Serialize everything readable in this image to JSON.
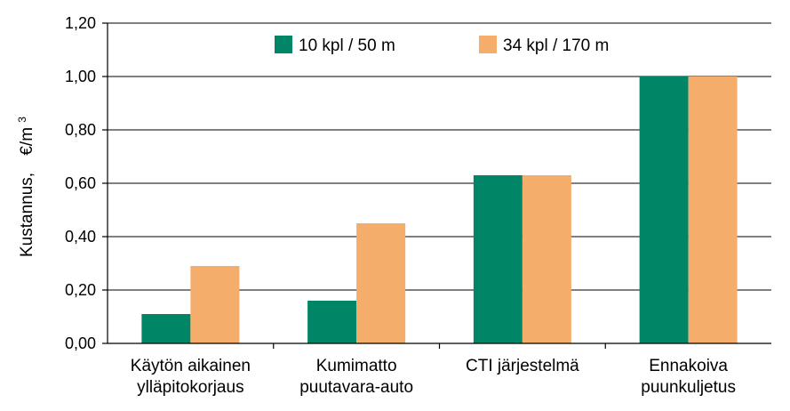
{
  "chart_data": {
    "type": "bar",
    "categories": [
      [
        "Käytön aikainen",
        "ylläpitokorjaus"
      ],
      [
        "Kumimatto",
        "puutavara-auto"
      ],
      [
        "CTI järjestelmä"
      ],
      [
        "Ennakoiva",
        "puunkuljetus"
      ]
    ],
    "series": [
      {
        "name": "10 kpl / 50 m",
        "color": "#008566",
        "values": [
          0.11,
          0.16,
          0.63,
          1.0
        ]
      },
      {
        "name": "34 kpl / 170 m",
        "color": "#F5AD6B",
        "values": [
          0.29,
          0.45,
          0.63,
          1.0
        ]
      }
    ],
    "ylabel": "Kustannus,",
    "yunit": "€/m",
    "yunit_sup": "3",
    "ylim": [
      0,
      1.2
    ],
    "yticks": [
      "0,00",
      "0,20",
      "0,40",
      "0,60",
      "0,80",
      "1,00",
      "1,20"
    ],
    "ytick_values": [
      0,
      0.2,
      0.4,
      0.6,
      0.8,
      1.0,
      1.2
    ],
    "grid": true,
    "legend_position": "top-center"
  }
}
